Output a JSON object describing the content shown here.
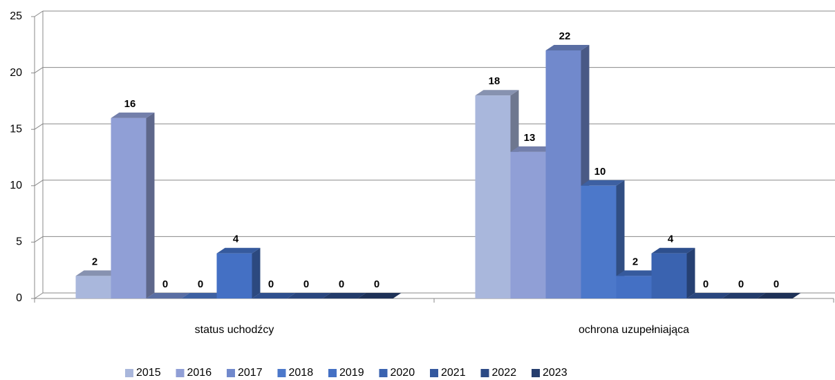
{
  "chart_data": {
    "type": "bar3d",
    "categories": [
      "status uchodźcy",
      "ochrona uzupełniająca"
    ],
    "series": [
      {
        "name": "2015",
        "color": "#a9b7dc",
        "values": [
          2,
          18
        ]
      },
      {
        "name": "2016",
        "color": "#909fd6",
        "values": [
          16,
          13
        ]
      },
      {
        "name": "2017",
        "color": "#7189cc",
        "values": [
          0,
          22
        ]
      },
      {
        "name": "2018",
        "color": "#4c78ca",
        "values": [
          0,
          10
        ]
      },
      {
        "name": "2019",
        "color": "#4470c4",
        "values": [
          4,
          2
        ]
      },
      {
        "name": "2020",
        "color": "#3a63b0",
        "values": [
          0,
          4
        ]
      },
      {
        "name": "2021",
        "color": "#34589e",
        "values": [
          0,
          0
        ]
      },
      {
        "name": "2022",
        "color": "#2c4a85",
        "values": [
          0,
          0
        ]
      },
      {
        "name": "2023",
        "color": "#253d6d",
        "values": [
          0,
          0
        ]
      }
    ],
    "ylim": [
      0,
      25
    ],
    "yticks": [
      0,
      5,
      10,
      15,
      20,
      25
    ],
    "grid": true,
    "legend": "bottom"
  }
}
